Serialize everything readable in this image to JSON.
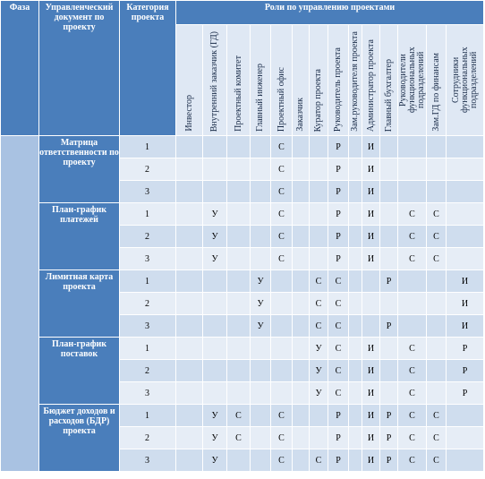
{
  "header": {
    "phase": "Фаза",
    "document": "Управленческий документ по проекту",
    "category": "Категория проекта",
    "roles_title": "Роли по управлению проектами",
    "roles": [
      "Инвестор",
      "Внутренний заказчик (ГД)",
      "Проектный комитет",
      "Главный инженер",
      "Проектный офис",
      "Заказчик",
      "Куратор проекта",
      "Руководитель проекта",
      "Зам.руководителя проекта",
      "Администратор проекта",
      "Главный бухгалтер",
      "Руководители функциональных подразделений",
      "Зам.ГД по финансам",
      "Сотрудники функциональных подразделений"
    ]
  },
  "groups": [
    {
      "document": "Матрица ответственности по проекту",
      "rows": [
        {
          "category": 1,
          "cells": [
            null,
            null,
            null,
            null,
            "С",
            null,
            null,
            "Р",
            null,
            "И",
            null,
            null,
            null,
            null
          ]
        },
        {
          "category": 2,
          "cells": [
            null,
            null,
            null,
            null,
            "С",
            null,
            null,
            "Р",
            null,
            "И",
            null,
            null,
            null,
            null
          ]
        },
        {
          "category": 3,
          "cells": [
            null,
            null,
            null,
            null,
            "С",
            null,
            null,
            "Р",
            null,
            "И",
            null,
            null,
            null,
            null
          ]
        }
      ]
    },
    {
      "document": "План-график платежей",
      "rows": [
        {
          "category": 1,
          "cells": [
            null,
            "У",
            null,
            null,
            "С",
            null,
            null,
            "Р",
            null,
            "И",
            null,
            "С",
            "С",
            null
          ]
        },
        {
          "category": 2,
          "cells": [
            null,
            "У",
            null,
            null,
            "С",
            null,
            null,
            "Р",
            null,
            "И",
            null,
            "С",
            "С",
            null
          ]
        },
        {
          "category": 3,
          "cells": [
            null,
            "У",
            null,
            null,
            "С",
            null,
            null,
            "Р",
            null,
            "И",
            null,
            "С",
            "С",
            null
          ]
        }
      ]
    },
    {
      "document": "Лимитная карта проекта",
      "rows": [
        {
          "category": 1,
          "cells": [
            null,
            null,
            null,
            "У",
            null,
            null,
            "С",
            "С",
            null,
            null,
            "Р",
            null,
            null,
            "И"
          ]
        },
        {
          "category": 2,
          "cells": [
            null,
            null,
            null,
            "У",
            null,
            null,
            "С",
            "С",
            null,
            null,
            null,
            null,
            null,
            "И"
          ]
        },
        {
          "category": 3,
          "cells": [
            null,
            null,
            null,
            "У",
            null,
            null,
            "С",
            "С",
            null,
            null,
            "Р",
            null,
            null,
            "И"
          ]
        }
      ]
    },
    {
      "document": "План-график поставок",
      "rows": [
        {
          "category": 1,
          "cells": [
            null,
            null,
            null,
            null,
            null,
            null,
            "У",
            "С",
            null,
            "И",
            null,
            "С",
            null,
            "Р"
          ]
        },
        {
          "category": 2,
          "cells": [
            null,
            null,
            null,
            null,
            null,
            null,
            "У",
            "С",
            null,
            "И",
            null,
            "С",
            null,
            "Р"
          ]
        },
        {
          "category": 3,
          "cells": [
            null,
            null,
            null,
            null,
            null,
            null,
            "У",
            "С",
            null,
            "И",
            null,
            "С",
            null,
            "Р"
          ]
        }
      ]
    },
    {
      "document": "Бюджет доходов и расходов (БДР) проекта",
      "rows": [
        {
          "category": 1,
          "cells": [
            null,
            "У",
            "С",
            null,
            "С",
            null,
            null,
            "Р",
            null,
            "И",
            "Р",
            "С",
            "С",
            null
          ]
        },
        {
          "category": 2,
          "cells": [
            null,
            "У",
            "С",
            null,
            "С",
            null,
            null,
            "Р",
            null,
            "И",
            "Р",
            "С",
            "С",
            null
          ]
        },
        {
          "category": 3,
          "cells": [
            null,
            "У",
            null,
            null,
            "С",
            null,
            "С",
            "Р",
            null,
            "И",
            "Р",
            "С",
            "С",
            null
          ]
        }
      ]
    }
  ]
}
